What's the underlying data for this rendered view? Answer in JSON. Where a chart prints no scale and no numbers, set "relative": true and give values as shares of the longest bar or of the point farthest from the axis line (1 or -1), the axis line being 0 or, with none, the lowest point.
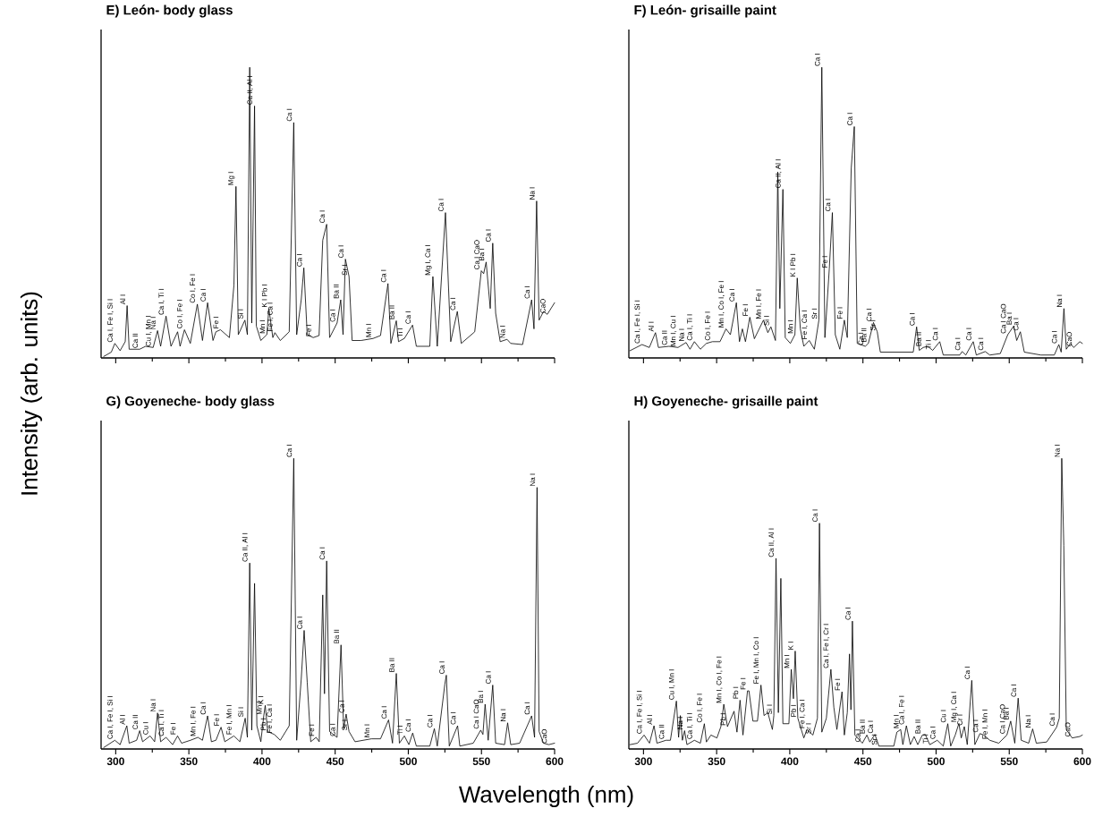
{
  "chart_data": [
    {
      "type": "line",
      "title": "E) León- body glass",
      "ylabel": "Intensity (arb. units)",
      "relative": true,
      "xlim": [
        290,
        600
      ],
      "xticks": [
        300,
        350,
        400,
        450,
        500,
        550,
        600
      ],
      "tick_labels": false,
      "x": [
        291.8,
        297,
        299.4,
        303,
        306.5,
        307.8,
        309.2,
        316.4,
        320.4,
        325.6,
        328.6,
        330.7,
        334.4,
        337.8,
        342.3,
        344,
        347,
        351,
        355.8,
        359.3,
        362.8,
        366.5,
        368.5,
        371.6,
        377.7,
        380.8,
        382.2,
        383.8,
        388.3,
        390,
        391.6,
        393,
        394.9,
        396.1,
        399.2,
        403.3,
        404.7,
        407.4,
        408.8,
        412.5,
        418.6,
        421.7,
        423.7,
        426.8,
        428.6,
        430.9,
        435,
        439,
        441.5,
        444.2,
        446.2,
        451.3,
        453.8,
        455.4,
        457,
        459.5,
        461.6,
        467.7,
        475.9,
        481,
        486.1,
        488.1,
        491.8,
        493.3,
        497.3,
        502.9,
        505.5,
        514.7,
        516.8,
        519.8,
        525.4,
        529,
        533.5,
        536.2,
        545.4,
        549.9,
        551.5,
        553.2,
        556,
        557.7,
        559.7,
        562.8,
        567.5,
        570,
        578.1,
        584.3,
        585.9,
        587.7,
        589.4,
        592.4,
        595,
        600
      ],
      "series": [
        {
          "color": "#000000",
          "values": [
            0.005,
            0.02,
            0.05,
            0.025,
            0.056,
            0.18,
            0.03,
            0.03,
            0.04,
            0.036,
            0.094,
            0.04,
            0.144,
            0.04,
            0.09,
            0.04,
            0.097,
            0.05,
            0.185,
            0.06,
            0.19,
            0.06,
            0.09,
            0.097,
            0.07,
            0.25,
            0.59,
            0.08,
            0.13,
            0.08,
            1.0,
            0.12,
            0.867,
            0.11,
            0.06,
            0.08,
            0.17,
            0.07,
            0.087,
            0.06,
            0.09,
            0.81,
            0.08,
            0.2,
            0.31,
            0.08,
            0.07,
            0.077,
            0.405,
            0.46,
            0.07,
            0.12,
            0.2,
            0.08,
            0.34,
            0.28,
            0.06,
            0.06,
            0.067,
            0.077,
            0.256,
            0.05,
            0.128,
            0.056,
            0.067,
            0.113,
            0.04,
            0.04,
            0.28,
            0.04,
            0.5,
            0.056,
            0.16,
            0.05,
            0.09,
            0.3,
            0.29,
            0.33,
            0.17,
            0.395,
            0.154,
            0.056,
            0.064,
            0.05,
            0.046,
            0.2,
            0.1,
            0.54,
            0.13,
            0.16,
            0.15,
            0.19
          ]
        }
      ],
      "annotations": [
        {
          "text": "Ca I, Fe I, Si I",
          "x": 299.4,
          "y": 0.05
        },
        {
          "text": "Al I",
          "x": 307.8,
          "y": 0.18
        },
        {
          "text": "Ca II",
          "x": 316.4,
          "y": 0.03
        },
        {
          "text": "Cu I, Mn I",
          "x": 325.6,
          "y": 0.036
        },
        {
          "text": "Na I",
          "x": 328.6,
          "y": 0.094
        },
        {
          "text": "Ca I, Ti I",
          "x": 334.4,
          "y": 0.144
        },
        {
          "text": "Co I, Fe I",
          "x": 347,
          "y": 0.097
        },
        {
          "text": "Co I, Fe I",
          "x": 355.8,
          "y": 0.185
        },
        {
          "text": "Ca I",
          "x": 362.8,
          "y": 0.19
        },
        {
          "text": "Fe I",
          "x": 371.6,
          "y": 0.097
        },
        {
          "text": "Mg I",
          "x": 382.2,
          "y": 0.59
        },
        {
          "text": "Si I",
          "x": 388.3,
          "y": 0.13
        },
        {
          "text": "Ca II, Al I",
          "x": 394.9,
          "y": 0.867
        },
        {
          "text": "Mn I",
          "x": 403.3,
          "y": 0.08
        },
        {
          "text": "K I",
          "x": 404.7,
          "y": 0.17
        },
        {
          "text": "Pb I",
          "x": 404.7,
          "y": 0.17
        },
        {
          "text": "Fe I, Ca I",
          "x": 408.8,
          "y": 0.087
        },
        {
          "text": "Ca I",
          "x": 421.7,
          "y": 0.81
        },
        {
          "text": "Ca I",
          "x": 428.6,
          "y": 0.31
        },
        {
          "text": "Fe I",
          "x": 435,
          "y": 0.07
        },
        {
          "text": "Ca I",
          "x": 444.2,
          "y": 0.46
        },
        {
          "text": "Ca I",
          "x": 451.3,
          "y": 0.12
        },
        {
          "text": "Ba II",
          "x": 453.8,
          "y": 0.2
        },
        {
          "text": "Ca I",
          "x": 457,
          "y": 0.34
        },
        {
          "text": "Sr I",
          "x": 459.5,
          "y": 0.28
        },
        {
          "text": "Mn I",
          "x": 475.9,
          "y": 0.067
        },
        {
          "text": "Ca I",
          "x": 486.1,
          "y": 0.256
        },
        {
          "text": "Ba II",
          "x": 491.8,
          "y": 0.128
        },
        {
          "text": "Ti I",
          "x": 497.3,
          "y": 0.067
        },
        {
          "text": "Ca I",
          "x": 502.9,
          "y": 0.113
        },
        {
          "text": "Mg I, Ca I",
          "x": 516.8,
          "y": 0.28
        },
        {
          "text": "Ca I",
          "x": 525.4,
          "y": 0.5
        },
        {
          "text": "Ca I",
          "x": 533.5,
          "y": 0.16
        },
        {
          "text": "Ca I",
          "x": 549.9,
          "y": 0.3
        },
        {
          "text": "CaO",
          "x": 549.9,
          "y": 0.3
        },
        {
          "text": "Ba I",
          "x": 553.2,
          "y": 0.33
        },
        {
          "text": "Ca I",
          "x": 557.7,
          "y": 0.395
        },
        {
          "text": "Na I",
          "x": 567.5,
          "y": 0.064
        },
        {
          "text": "Ca I",
          "x": 584.3,
          "y": 0.2
        },
        {
          "text": "Na I",
          "x": 587.7,
          "y": 0.54
        },
        {
          "text": "CaO",
          "x": 595,
          "y": 0.15
        }
      ]
    },
    {
      "type": "line",
      "title": "F) León- grisaille paint",
      "relative": true,
      "xlim": [
        290,
        600
      ],
      "xticks": [
        300,
        350,
        400,
        450,
        500,
        550,
        600
      ],
      "tick_labels": false,
      "x": [
        290.8,
        299,
        304,
        308.2,
        310.2,
        317.4,
        323.6,
        329.1,
        331.8,
        334.8,
        338.9,
        343,
        347.1,
        352.3,
        356.4,
        359.4,
        363.5,
        365.6,
        367.6,
        369.7,
        372.7,
        375.8,
        382,
        385,
        387.1,
        390.2,
        391.8,
        393.2,
        395.3,
        396.9,
        400.4,
        403.5,
        405.1,
        407.2,
        409.6,
        413.3,
        416.8,
        419.9,
        421.9,
        424,
        427,
        429.1,
        431.1,
        434.2,
        437.3,
        439.3,
        442,
        444.1,
        446.1,
        451.6,
        453.7,
        457.2,
        459.8,
        461.9,
        473.2,
        484.4,
        486.7,
        488.5,
        491.2,
        494.3,
        497.7,
        502.5,
        504.9,
        516.2,
        517.8,
        520.3,
        525.4,
        527.5,
        533.6,
        536.7,
        543.9,
        549,
        553.1,
        555.1,
        557.6,
        560.3,
        571.6,
        580.8,
        583.9,
        585.5,
        587.4,
        589,
        591.7,
        594.1,
        598.2,
        600
      ],
      "series": [
        {
          "color": "#000000",
          "values": [
            0.025,
            0.046,
            0.036,
            0.087,
            0.036,
            0.04,
            0.036,
            0.053,
            0.03,
            0.056,
            0.03,
            0.05,
            0.056,
            0.056,
            0.1,
            0.08,
            0.19,
            0.056,
            0.1,
            0.056,
            0.14,
            0.066,
            0.13,
            0.087,
            0.107,
            0.06,
            0.64,
            0.17,
            0.58,
            0.07,
            0.05,
            0.08,
            0.275,
            0.1,
            0.04,
            0.06,
            0.03,
            0.13,
            1.0,
            0.07,
            0.306,
            0.5,
            0.08,
            0.03,
            0.13,
            0.07,
            0.653,
            0.796,
            0.05,
            0.04,
            0.05,
            0.122,
            0.09,
            0.02,
            0.02,
            0.02,
            0.107,
            0.026,
            0.036,
            0.04,
            0.026,
            0.056,
            0.01,
            0.01,
            0.022,
            0.01,
            0.056,
            0.01,
            0.022,
            0.01,
            0.015,
            0.08,
            0.11,
            0.06,
            0.09,
            0.02,
            0.01,
            0.01,
            0.046,
            0.02,
            0.17,
            0.03,
            0.05,
            0.036,
            0.056,
            0.05
          ]
        }
      ],
      "annotations": [
        {
          "text": "Ca I, Fe I, Si I",
          "x": 299,
          "y": 0.046
        },
        {
          "text": "Al I",
          "x": 308.2,
          "y": 0.087
        },
        {
          "text": "Ca II",
          "x": 317.4,
          "y": 0.04
        },
        {
          "text": "Mn I, Cu I",
          "x": 323.6,
          "y": 0.036
        },
        {
          "text": "Na I",
          "x": 329.1,
          "y": 0.053
        },
        {
          "text": "Ca I, Ti I",
          "x": 334.8,
          "y": 0.056
        },
        {
          "text": "Co I, Fe I",
          "x": 347.1,
          "y": 0.056
        },
        {
          "text": "Mn I, Co I, Fe I",
          "x": 356.4,
          "y": 0.1
        },
        {
          "text": "Ca I",
          "x": 363.5,
          "y": 0.19
        },
        {
          "text": "Fe I",
          "x": 372.7,
          "y": 0.14
        },
        {
          "text": "Mn I, Fe I",
          "x": 382,
          "y": 0.13
        },
        {
          "text": "Si I",
          "x": 387.1,
          "y": 0.107
        },
        {
          "text": "Ca II, Al I",
          "x": 395.3,
          "y": 0.58
        },
        {
          "text": "Mn I",
          "x": 403.5,
          "y": 0.08
        },
        {
          "text": "K I",
          "x": 405.1,
          "y": 0.275
        },
        {
          "text": "Pb I",
          "x": 405.1,
          "y": 0.275
        },
        {
          "text": "Fe I, Ca I",
          "x": 413.3,
          "y": 0.06
        },
        {
          "text": "Sr I",
          "x": 419.9,
          "y": 0.13
        },
        {
          "text": "Fe I",
          "x": 427,
          "y": 0.306
        },
        {
          "text": "Ca I",
          "x": 421.9,
          "y": 1.0
        },
        {
          "text": "Ca I",
          "x": 429.1,
          "y": 0.5
        },
        {
          "text": "Fe I",
          "x": 437.3,
          "y": 0.13
        },
        {
          "text": "Ca I",
          "x": 444.1,
          "y": 0.796
        },
        {
          "text": "Ca I",
          "x": 451.6,
          "y": 0.04
        },
        {
          "text": "Ba II",
          "x": 453.7,
          "y": 0.05
        },
        {
          "text": "Ca I",
          "x": 457.2,
          "y": 0.122
        },
        {
          "text": "Sr I",
          "x": 459.8,
          "y": 0.09
        },
        {
          "text": "Ca I",
          "x": 486.7,
          "y": 0.107
        },
        {
          "text": "Ba II",
          "x": 491.2,
          "y": 0.036
        },
        {
          "text": "Ti I",
          "x": 497.7,
          "y": 0.026
        },
        {
          "text": "Ca I",
          "x": 502.5,
          "y": 0.056
        },
        {
          "text": "Ca I",
          "x": 517.8,
          "y": 0.022
        },
        {
          "text": "Ca I",
          "x": 525.4,
          "y": 0.056
        },
        {
          "text": "Ca I",
          "x": 533.6,
          "y": 0.022
        },
        {
          "text": "Ca I",
          "x": 549,
          "y": 0.08
        },
        {
          "text": "CaO",
          "x": 549,
          "y": 0.08
        },
        {
          "text": "Ba I",
          "x": 553.1,
          "y": 0.11
        },
        {
          "text": "Ca I",
          "x": 557.6,
          "y": 0.09
        },
        {
          "text": "Ca I",
          "x": 583.9,
          "y": 0.046
        },
        {
          "text": "Na I",
          "x": 587.4,
          "y": 0.17
        },
        {
          "text": "CaO",
          "x": 594.1,
          "y": 0.036
        }
      ]
    },
    {
      "type": "line",
      "title": "G) Goyeneche- body glass",
      "xlabel": "Wavelength (nm)",
      "relative": true,
      "xlim": [
        290,
        600
      ],
      "xticks": [
        300,
        350,
        400,
        450,
        500,
        550,
        600
      ],
      "x": [
        291.8,
        299.4,
        303,
        307.6,
        309.2,
        314.3,
        316.4,
        318.4,
        323.5,
        326.6,
        328.6,
        330.7,
        334.4,
        338.9,
        342.3,
        345,
        351.1,
        356.2,
        359.3,
        362.8,
        365.4,
        368.5,
        372,
        374.6,
        380.8,
        384.9,
        388.5,
        390,
        391.6,
        393,
        394.9,
        396.5,
        399.2,
        401.2,
        402.2,
        403.9,
        408.4,
        412.5,
        418.6,
        421.7,
        423.7,
        426.8,
        428.8,
        430.9,
        433.3,
        437,
        439.1,
        441.5,
        442.7,
        444.2,
        446.2,
        451.3,
        454,
        455.8,
        457.5,
        459.5,
        463.6,
        474.8,
        481,
        486.5,
        489.2,
        491.8,
        493.9,
        497.3,
        500.4,
        503,
        505.5,
        514.7,
        517.8,
        519.8,
        525,
        526,
        528,
        533.7,
        535.2,
        544.4,
        549.5,
        551,
        552.5,
        554.6,
        557.7,
        559.7,
        565.8,
        567.9,
        570,
        576.1,
        584.3,
        586.3,
        588,
        589.4,
        592.4,
        596,
        600
      ],
      "series": [
        {
          "color": "#000000",
          "values": [
            0.005,
            0.03,
            0.015,
            0.08,
            0.02,
            0.03,
            0.063,
            0.025,
            0.045,
            0.025,
            0.124,
            0.025,
            0.04,
            0.015,
            0.045,
            0.02,
            0.03,
            0.04,
            0.03,
            0.114,
            0.025,
            0.03,
            0.075,
            0.025,
            0.045,
            0.025,
            0.106,
            0.04,
            0.64,
            0.065,
            0.57,
            0.08,
            0.025,
            0.114,
            0.15,
            0.06,
            0.05,
            0.03,
            0.08,
            1.0,
            0.03,
            0.24,
            0.408,
            0.23,
            0.025,
            0.04,
            0.025,
            0.53,
            0.19,
            0.647,
            0.06,
            0.04,
            0.358,
            0.07,
            0.12,
            0.06,
            0.025,
            0.035,
            0.035,
            0.1,
            0.02,
            0.26,
            0.02,
            0.045,
            0.015,
            0.055,
            0.01,
            0.01,
            0.07,
            0.01,
            0.224,
            0.254,
            0.01,
            0.08,
            0.01,
            0.02,
            0.065,
            0.05,
            0.154,
            0.03,
            0.22,
            0.02,
            0.015,
            0.09,
            0.015,
            0.02,
            0.114,
            0.04,
            0.9,
            0.06,
            0.02,
            0.015,
            0.02
          ]
        }
      ],
      "annotations": [
        {
          "text": "Ca I, Fe I, Si I",
          "x": 299.4,
          "y": 0.03
        },
        {
          "text": "Al I",
          "x": 307.6,
          "y": 0.08
        },
        {
          "text": "Ca II",
          "x": 316.4,
          "y": 0.063
        },
        {
          "text": "Cu I",
          "x": 323.5,
          "y": 0.045
        },
        {
          "text": "Na I",
          "x": 328.6,
          "y": 0.124
        },
        {
          "text": "Ca I, Ti I",
          "x": 334.4,
          "y": 0.04
        },
        {
          "text": "Fe I",
          "x": 342.3,
          "y": 0.045
        },
        {
          "text": "Mn I, Fe I",
          "x": 356.2,
          "y": 0.04
        },
        {
          "text": "Ca I",
          "x": 362.8,
          "y": 0.114
        },
        {
          "text": "Fe I",
          "x": 372,
          "y": 0.075
        },
        {
          "text": "Fe I, Mn I",
          "x": 380.8,
          "y": 0.045
        },
        {
          "text": "Si I",
          "x": 388.5,
          "y": 0.106
        },
        {
          "text": "Ca II, Al I",
          "x": 391.6,
          "y": 0.64
        },
        {
          "text": "Mn I",
          "x": 401.2,
          "y": 0.114
        },
        {
          "text": "K I",
          "x": 402.2,
          "y": 0.15
        },
        {
          "text": "Pb I",
          "x": 403.9,
          "y": 0.06
        },
        {
          "text": "Fe I, Ca I",
          "x": 408.4,
          "y": 0.05
        },
        {
          "text": "Ca I",
          "x": 421.7,
          "y": 1.0
        },
        {
          "text": "Ca I",
          "x": 428.8,
          "y": 0.408
        },
        {
          "text": "Fe I",
          "x": 437,
          "y": 0.04
        },
        {
          "text": "Ca I",
          "x": 444.2,
          "y": 0.647
        },
        {
          "text": "Ca I",
          "x": 451.3,
          "y": 0.04
        },
        {
          "text": "Ba II",
          "x": 454,
          "y": 0.358
        },
        {
          "text": "Ca I",
          "x": 457.5,
          "y": 0.12
        },
        {
          "text": "Sr I",
          "x": 459.5,
          "y": 0.06
        },
        {
          "text": "Mn I",
          "x": 474.8,
          "y": 0.035
        },
        {
          "text": "Ca I",
          "x": 486.5,
          "y": 0.1
        },
        {
          "text": "Ba II",
          "x": 491.8,
          "y": 0.26
        },
        {
          "text": "Ti I",
          "x": 497.3,
          "y": 0.045
        },
        {
          "text": "Ca I",
          "x": 503,
          "y": 0.055
        },
        {
          "text": "Ca I",
          "x": 517.8,
          "y": 0.07
        },
        {
          "text": "Ca I",
          "x": 526,
          "y": 0.254
        },
        {
          "text": "Ca I",
          "x": 533.7,
          "y": 0.08
        },
        {
          "text": "Ca I",
          "x": 549.5,
          "y": 0.065
        },
        {
          "text": "CaO",
          "x": 549.5,
          "y": 0.065
        },
        {
          "text": "Ba I",
          "x": 552.5,
          "y": 0.154
        },
        {
          "text": "Ca I",
          "x": 557.7,
          "y": 0.22
        },
        {
          "text": "Na I",
          "x": 567.9,
          "y": 0.09
        },
        {
          "text": "Ca I",
          "x": 584.3,
          "y": 0.114
        },
        {
          "text": "Na I",
          "x": 588,
          "y": 0.9
        },
        {
          "text": "CaO",
          "x": 596,
          "y": 0.015
        }
      ]
    },
    {
      "type": "line",
      "title": "H) Goyeneche- grisaille paint",
      "relative": true,
      "xlim": [
        290,
        600
      ],
      "xticks": [
        300,
        350,
        400,
        450,
        500,
        550,
        600
      ],
      "x": [
        290.8,
        295.9,
        300.4,
        304.1,
        307.2,
        309.2,
        315.4,
        318.4,
        322.5,
        324,
        325.2,
        326.6,
        328.1,
        329.7,
        334.8,
        338.9,
        341.6,
        343,
        346.1,
        350.2,
        352.9,
        354.9,
        357.4,
        361.9,
        363.9,
        366,
        368,
        371.1,
        372.1,
        374.8,
        377.9,
        380.3,
        382.4,
        385,
        388.1,
        389.1,
        390.6,
        392.2,
        393.9,
        395.3,
        399.4,
        401,
        402.5,
        403.7,
        405.5,
        409.6,
        411.7,
        415.8,
        418.9,
        420.3,
        421.9,
        425,
        428.1,
        430.1,
        432.2,
        435.7,
        437.3,
        439.3,
        440.8,
        441.8,
        442.8,
        444.5,
        449.6,
        452.7,
        454.7,
        458.2,
        460.9,
        471.1,
        473.2,
        475.8,
        477.3,
        479.7,
        482.4,
        485,
        487.5,
        490.6,
        492.6,
        495.7,
        500.8,
        504.9,
        508,
        510,
        513.1,
        515.6,
        517.2,
        519.3,
        521.3,
        524.4,
        526.5,
        530,
        532.6,
        536.7,
        542.8,
        548.4,
        551,
        553.8,
        556.1,
        558.2,
        563.3,
        566,
        568.5,
        575.6,
        582.4,
        584.2,
        585.9,
        587.3,
        589,
        593,
        598.2,
        600
      ],
      "series": [
        {
          "color": "#000000",
          "values": [
            0.015,
            0.02,
            0.048,
            0.02,
            0.08,
            0.02,
            0.03,
            0.03,
            0.165,
            0.04,
            0.115,
            0.03,
            0.063,
            0.015,
            0.03,
            0.02,
            0.087,
            0.024,
            0.048,
            0.038,
            0.077,
            0.154,
            0.077,
            0.13,
            0.058,
            0.168,
            0.048,
            0.2,
            0.2,
            0.096,
            0.096,
            0.22,
            0.115,
            0.125,
            0.067,
            0.115,
            0.656,
            0.125,
            0.587,
            0.087,
            0.087,
            0.274,
            0.173,
            0.337,
            0.106,
            0.038,
            0.067,
            0.048,
            0.106,
            0.777,
            0.058,
            0.106,
            0.274,
            0.144,
            0.067,
            0.197,
            0.048,
            0.125,
            0.327,
            0.135,
            0.44,
            0.048,
            0.02,
            0.048,
            0.024,
            0.05,
            0.01,
            0.01,
            0.058,
            0.067,
            0.015,
            0.08,
            0.015,
            0.043,
            0.015,
            0.048,
            0.05,
            0.015,
            0.03,
            0.01,
            0.087,
            0.01,
            0.048,
            0.088,
            0.038,
            0.077,
            0.015,
            0.236,
            0.015,
            0.053,
            0.048,
            0.03,
            0.02,
            0.048,
            0.096,
            0.02,
            0.175,
            0.03,
            0.02,
            0.069,
            0.02,
            0.024,
            0.075,
            0.106,
            1.0,
            0.7,
            0.067,
            0.038,
            0.043,
            0.048
          ]
        }
      ],
      "annotations": [
        {
          "text": "Ca I, Fe I, Si I",
          "x": 300.4,
          "y": 0.048
        },
        {
          "text": "Al I",
          "x": 307.2,
          "y": 0.08
        },
        {
          "text": "Ca II",
          "x": 315.4,
          "y": 0.03
        },
        {
          "text": "Cu I, Mn I",
          "x": 322.5,
          "y": 0.165
        },
        {
          "text": "Na I",
          "x": 328.1,
          "y": 0.063
        },
        {
          "text": "Ca I, Ti I",
          "x": 334.8,
          "y": 0.03
        },
        {
          "text": "Co I, Fe I",
          "x": 341.6,
          "y": 0.087
        },
        {
          "text": "Mn I, Co I, Fe I",
          "x": 354.9,
          "y": 0.154
        },
        {
          "text": "Pb I",
          "x": 357.4,
          "y": 0.077
        },
        {
          "text": "Pb I",
          "x": 366,
          "y": 0.168
        },
        {
          "text": "Fe I",
          "x": 371.1,
          "y": 0.2
        },
        {
          "text": "Fe I, Mn I, Co I",
          "x": 380.3,
          "y": 0.22
        },
        {
          "text": "Si I",
          "x": 389.1,
          "y": 0.115
        },
        {
          "text": "Ca II, Al I",
          "x": 390.6,
          "y": 0.656
        },
        {
          "text": "Mn I",
          "x": 401,
          "y": 0.274
        },
        {
          "text": "K I",
          "x": 403.7,
          "y": 0.337
        },
        {
          "text": "Pb I",
          "x": 405.5,
          "y": 0.106
        },
        {
          "text": "Fe I, Ca I",
          "x": 411.7,
          "y": 0.067
        },
        {
          "text": "Sr I",
          "x": 415.8,
          "y": 0.048
        },
        {
          "text": "Ca I",
          "x": 420.3,
          "y": 0.777
        },
        {
          "text": "Ca I, Fe I, Cr I",
          "x": 428.1,
          "y": 0.274
        },
        {
          "text": "Fe I",
          "x": 435.7,
          "y": 0.197
        },
        {
          "text": "Ca I",
          "x": 442.8,
          "y": 0.44
        },
        {
          "text": "Ca I",
          "x": 449.6,
          "y": 0.02
        },
        {
          "text": "Ba II",
          "x": 452.7,
          "y": 0.048
        },
        {
          "text": "Ca I",
          "x": 458.2,
          "y": 0.05
        },
        {
          "text": "Sr I",
          "x": 460.9,
          "y": 0.01
        },
        {
          "text": "Mn I",
          "x": 475.8,
          "y": 0.067
        },
        {
          "text": "Ca I, Fe I",
          "x": 479.7,
          "y": 0.08
        },
        {
          "text": "Ba II",
          "x": 490.6,
          "y": 0.048
        },
        {
          "text": "Ti I",
          "x": 495.7,
          "y": 0.015
        },
        {
          "text": "Ca I",
          "x": 500.8,
          "y": 0.03
        },
        {
          "text": "Cu I",
          "x": 508,
          "y": 0.087
        },
        {
          "text": "Mg I, Ca I",
          "x": 515.6,
          "y": 0.088
        },
        {
          "text": "Cr I",
          "x": 519.3,
          "y": 0.077
        },
        {
          "text": "Ca I",
          "x": 524.4,
          "y": 0.236
        },
        {
          "text": "Ca I",
          "x": 530,
          "y": 0.053
        },
        {
          "text": "Fe I, Mn I",
          "x": 536.7,
          "y": 0.03
        },
        {
          "text": "Ca I",
          "x": 548.4,
          "y": 0.048
        },
        {
          "text": "CaO",
          "x": 548.4,
          "y": 0.048
        },
        {
          "text": "Ba I",
          "x": 551,
          "y": 0.096
        },
        {
          "text": "Ca I",
          "x": 556.1,
          "y": 0.175
        },
        {
          "text": "Na I",
          "x": 566,
          "y": 0.069
        },
        {
          "text": "Ca I",
          "x": 582.4,
          "y": 0.075
        },
        {
          "text": "Na I",
          "x": 585.9,
          "y": 1.0
        },
        {
          "text": "CaO",
          "x": 593,
          "y": 0.038
        }
      ]
    }
  ]
}
